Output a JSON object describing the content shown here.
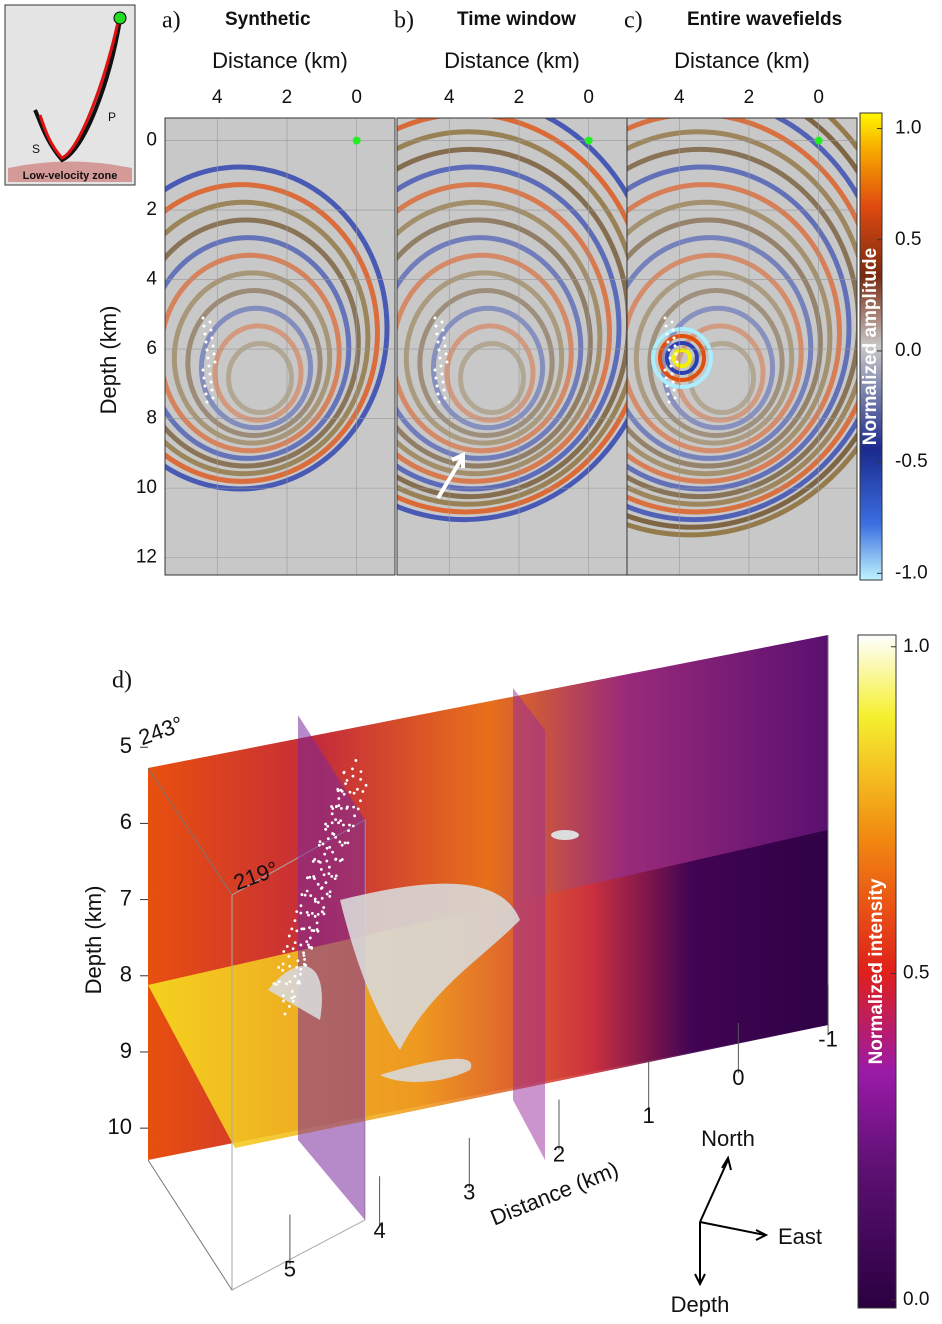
{
  "inset": {
    "wave_labels": [
      "S",
      "P"
    ],
    "zone": "Low-velocity zone"
  },
  "panels": [
    {
      "letter": "a)",
      "title": "Synthetic"
    },
    {
      "letter": "b)",
      "title": "Time window"
    },
    {
      "letter": "c)",
      "title": "Entire wavefields"
    }
  ],
  "top_axes": {
    "xlabel": "Distance (km)",
    "ylabel": "Depth (km)",
    "xlim": [
      5.5,
      -1.1
    ],
    "xticks": [
      4,
      2,
      0
    ],
    "ylim": [
      -0.65,
      12.5
    ],
    "yticks": [
      0,
      2,
      4,
      6,
      8,
      10,
      12
    ]
  },
  "amplitude_bar": {
    "label": "Normalized amplitude",
    "ylim": [
      -1.03,
      1.07
    ],
    "ticks": [
      {
        "value": 1.0,
        "label": "1.0"
      },
      {
        "value": 0.5,
        "label": "0.5"
      },
      {
        "value": 0.0,
        "label": "0.0"
      },
      {
        "value": -0.5,
        "label": "-0.5"
      },
      {
        "value": -1.0,
        "label": "-1.0"
      }
    ]
  },
  "panel_d": {
    "letter": "d)",
    "ylabel": "Depth (km)",
    "ylim": [
      4.8,
      10.3
    ],
    "yticks": [
      5,
      6,
      7,
      8,
      9,
      10
    ],
    "xlabel": "Distance (km)",
    "xlim": [
      5.3,
      -1.2
    ],
    "xticks": [
      5,
      4,
      3,
      2,
      1,
      0,
      -1
    ],
    "azimuths": [
      "243°",
      "219°"
    ],
    "compass": [
      "North",
      "East",
      "Depth"
    ]
  },
  "intensity_bar": {
    "label": "Normalized intensity",
    "ylim": [
      -0.012,
      1.018
    ],
    "ticks": [
      {
        "value": 1.0,
        "label": "1.0"
      },
      {
        "value": 0.5,
        "label": "0.5"
      },
      {
        "value": 0.0,
        "label": "0.0"
      }
    ]
  }
}
